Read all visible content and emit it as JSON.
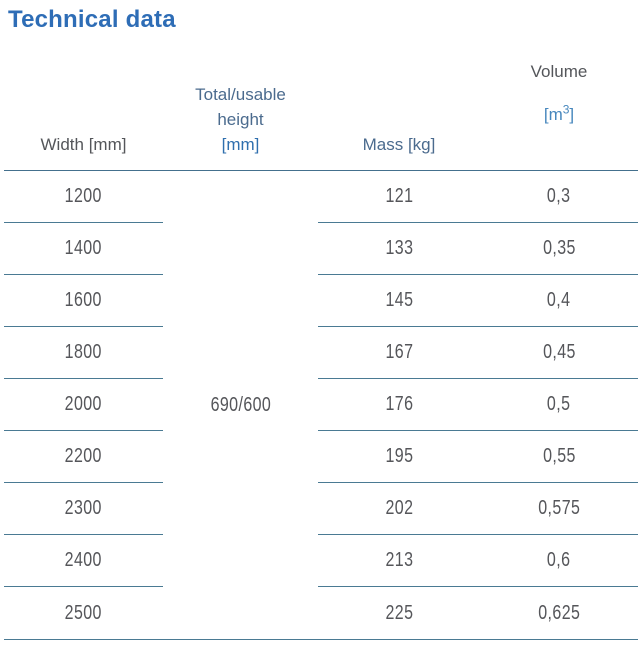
{
  "title": "Technical data",
  "colors": {
    "title_blue": "#2e6db6",
    "header_dark_gray": "#54565a",
    "header_blue_gray": "#4b6b8e",
    "unit_blue": "#2f6fae",
    "unit_light_blue": "#4787bd",
    "value_gray": "#55565a",
    "line_teal_blue": "#4a7a93"
  },
  "table": {
    "header": {
      "width_label": "Width [mm]",
      "height_line1": "Total/usable",
      "height_line2": "height",
      "height_unit": "[mm]",
      "mass_label": "Mass [kg]",
      "volume_label": "Volume",
      "volume_unit_open": "[m",
      "volume_unit_sup": "3",
      "volume_unit_close": "]"
    },
    "merged_height_value": "690/600",
    "rows": [
      {
        "width": "1200",
        "mass": "121",
        "volume": "0,3"
      },
      {
        "width": "1400",
        "mass": "133",
        "volume": "0,35"
      },
      {
        "width": "1600",
        "mass": "145",
        "volume": "0,4"
      },
      {
        "width": "1800",
        "mass": "167",
        "volume": "0,45"
      },
      {
        "width": "2000",
        "mass": "176",
        "volume": "0,5"
      },
      {
        "width": "2200",
        "mass": "195",
        "volume": "0,55"
      },
      {
        "width": "2300",
        "mass": "202",
        "volume": "0,575"
      },
      {
        "width": "2400",
        "mass": "213",
        "volume": "0,6"
      },
      {
        "width": "2500",
        "mass": "225",
        "volume": "0,625"
      }
    ]
  }
}
